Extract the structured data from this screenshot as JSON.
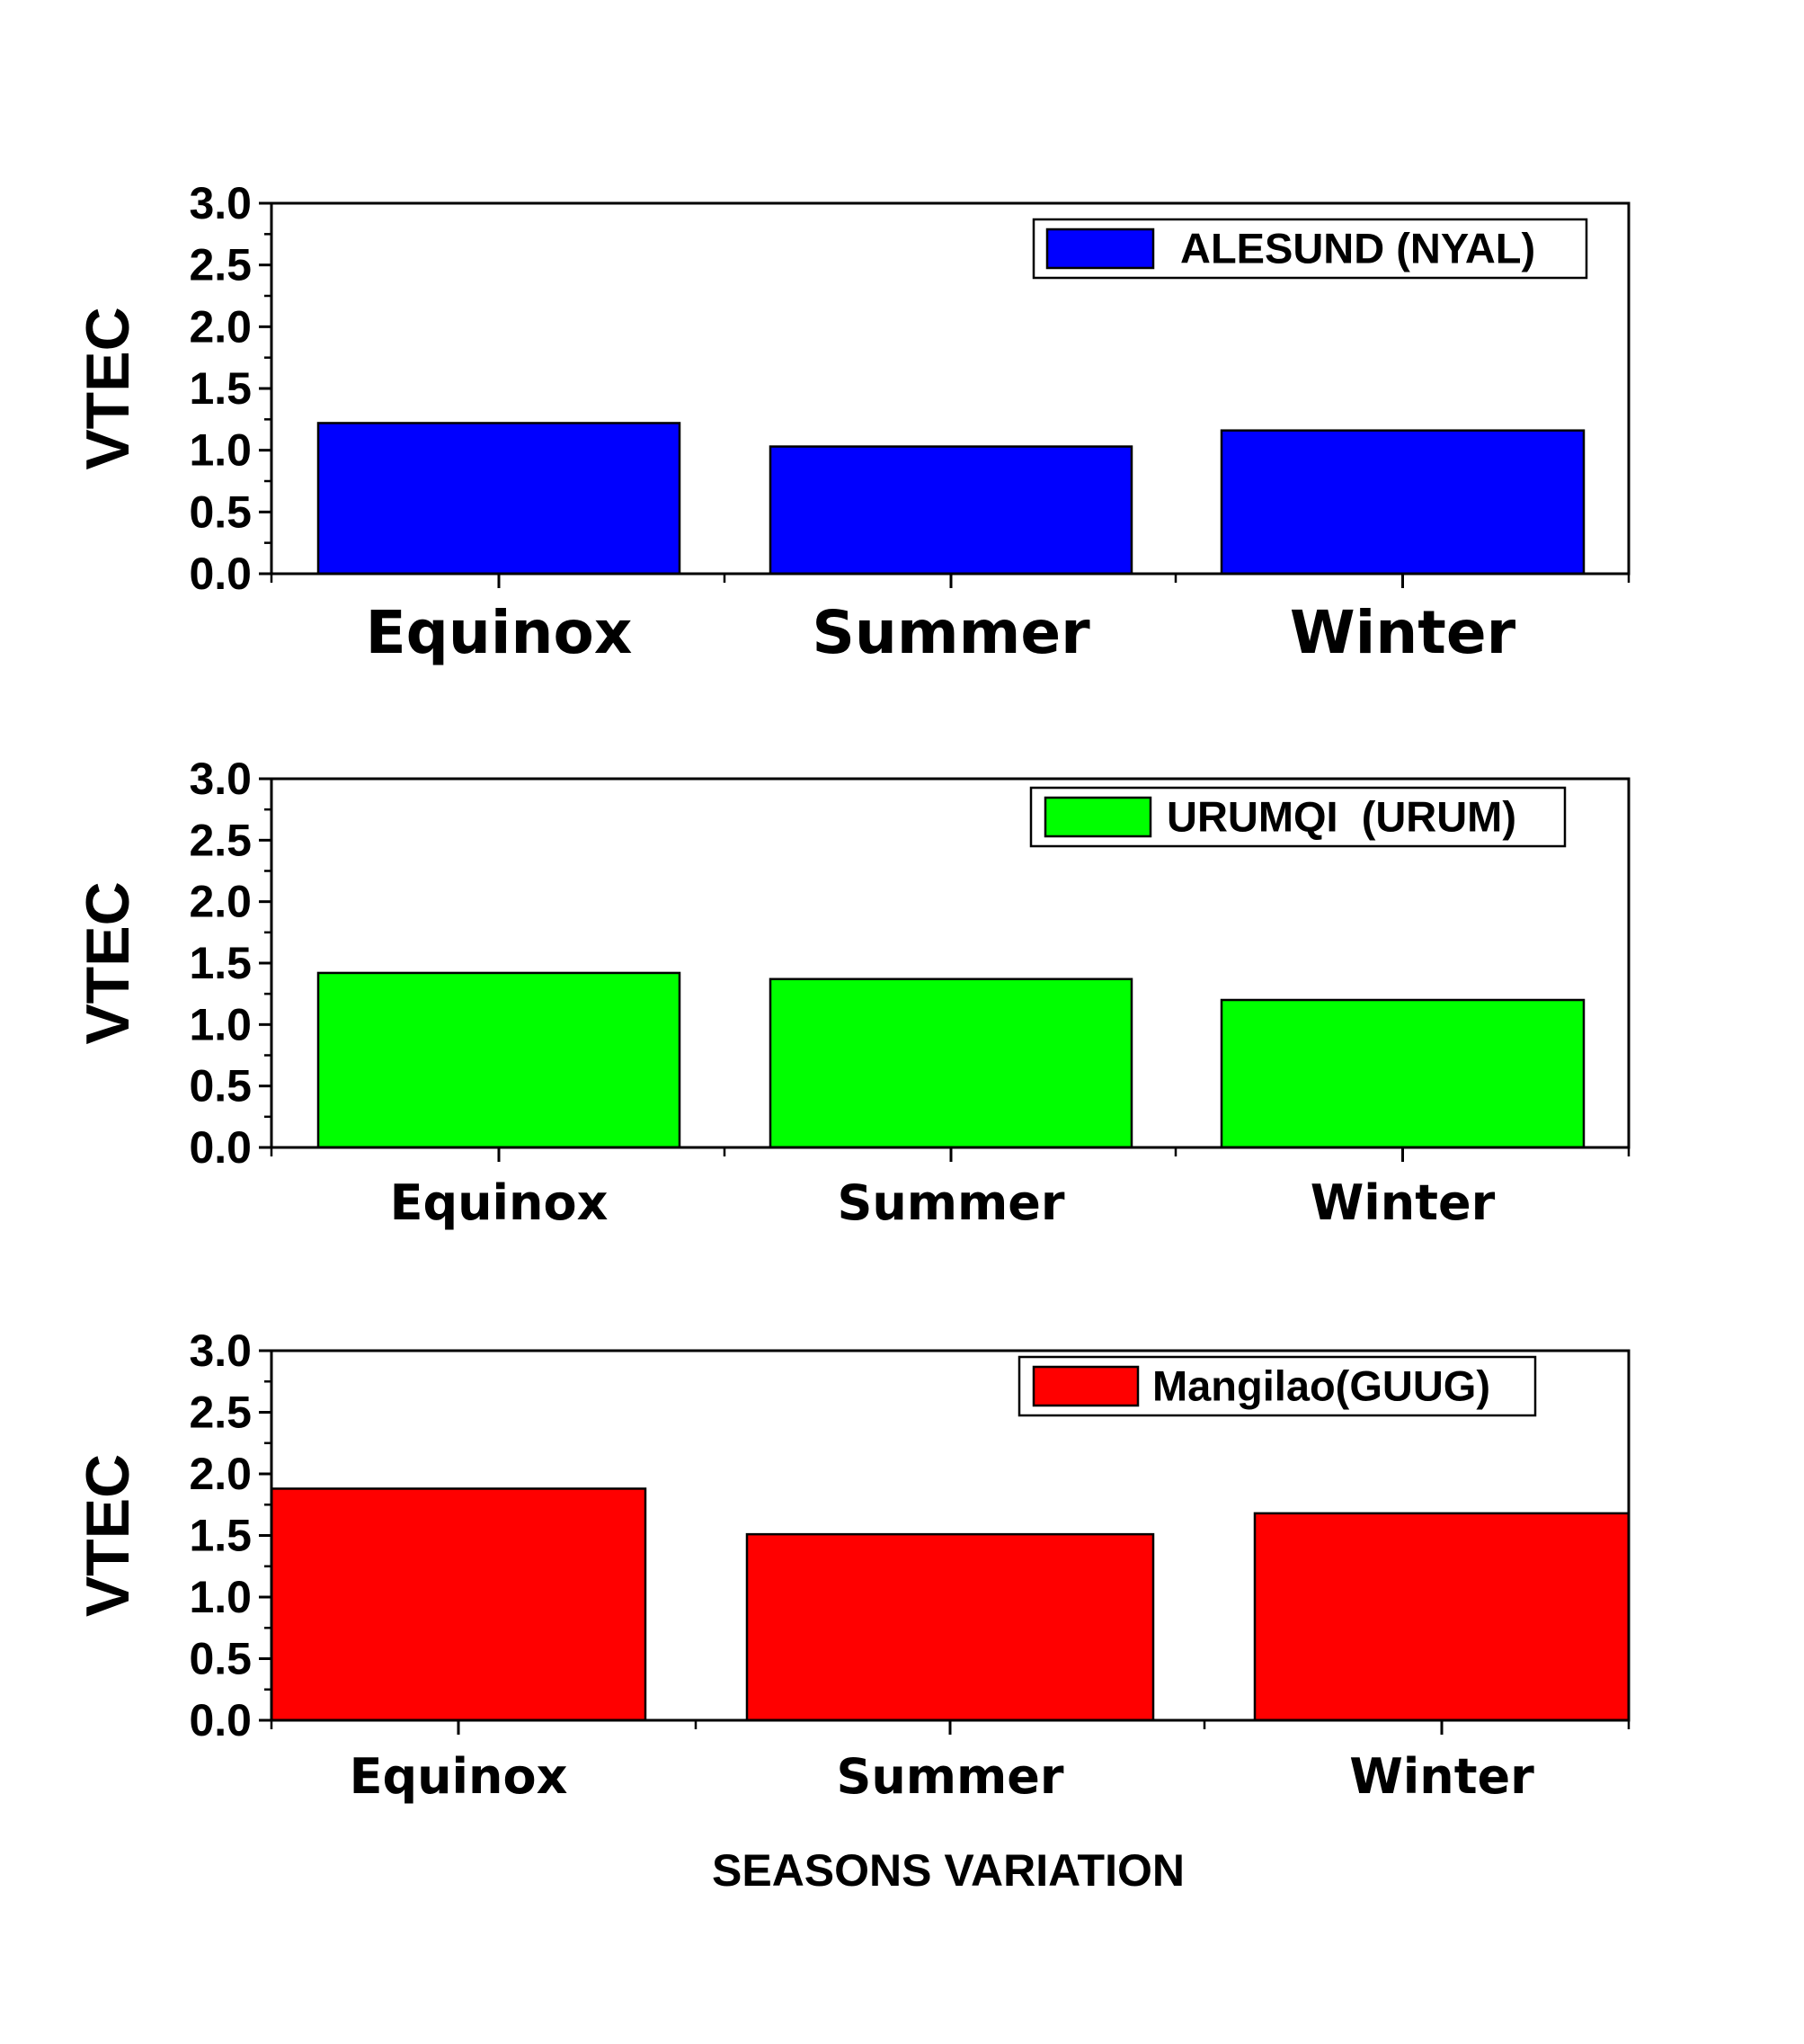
{
  "colors": {
    "background": "#ffffff",
    "axis": "#000000",
    "ALESUND (NYAL)": "#0000ff",
    "URUMQI  (URUM)": "#00ff00",
    "Mangilao(GUUG)": "#ff0000"
  },
  "figure": {
    "xlabel": "SEASONS VARIATION"
  },
  "chart_data": [
    {
      "type": "bar",
      "categories": [
        "Equinox",
        "Summer",
        "Winter"
      ],
      "series": [
        {
          "name": "ALESUND (NYAL)",
          "values": [
            1.22,
            1.03,
            1.16
          ]
        }
      ],
      "ylabel": "VTEC",
      "ylim": [
        0,
        3.0
      ],
      "yticks": [
        "0.0",
        "0.5",
        "1.0",
        "1.5",
        "2.0",
        "2.5",
        "3.0"
      ],
      "legend": "top-right",
      "grid": false
    },
    {
      "type": "bar",
      "categories": [
        "Equinox",
        "Summer",
        "Winter"
      ],
      "series": [
        {
          "name": "URUMQI  (URUM)",
          "values": [
            1.42,
            1.37,
            1.2
          ]
        }
      ],
      "ylabel": "VTEC",
      "ylim": [
        0,
        3.0
      ],
      "yticks": [
        "0.0",
        "0.5",
        "1.0",
        "1.5",
        "2.0",
        "2.5",
        "3.0"
      ],
      "legend": "top-right",
      "grid": false
    },
    {
      "type": "bar",
      "categories": [
        "Equinox",
        "Summer",
        "Winter"
      ],
      "series": [
        {
          "name": "Mangilao(GUUG)",
          "values": [
            1.88,
            1.51,
            1.68
          ]
        }
      ],
      "ylabel": "VTEC",
      "ylim": [
        0,
        3.0
      ],
      "yticks": [
        "0.0",
        "0.5",
        "1.0",
        "1.5",
        "2.0",
        "2.5",
        "3.0"
      ],
      "legend": "top-right",
      "grid": false
    }
  ]
}
